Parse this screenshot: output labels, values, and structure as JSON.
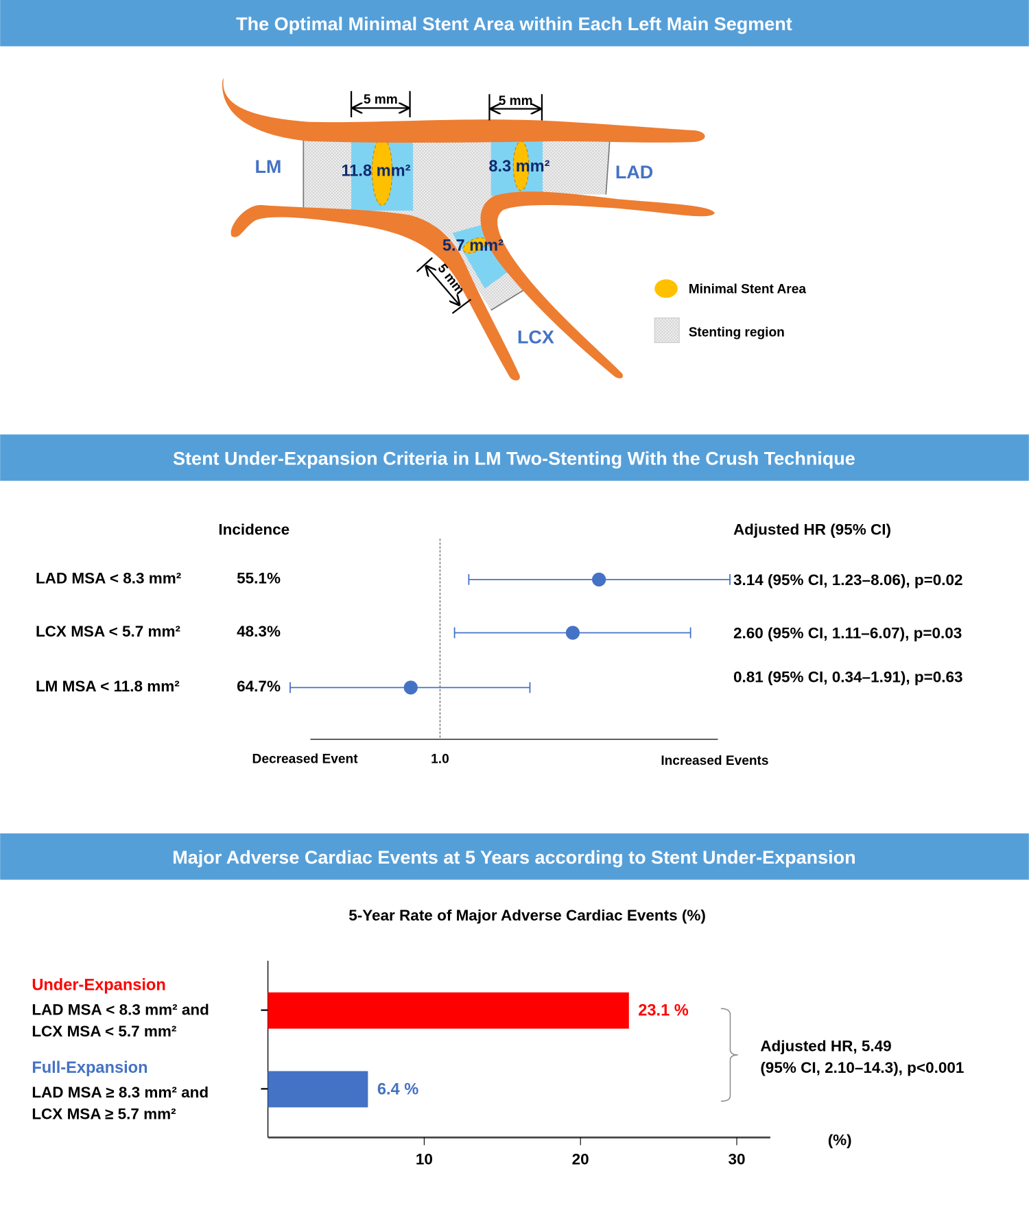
{
  "sections": {
    "diagram_title": "The Optimal Minimal Stent Area within Each Left Main Segment",
    "forest_title": "Stent Under-Expansion Criteria in LM Two-Stenting With the Crush Technique",
    "bar_title": "Major Adverse Cardiac Events at 5 Years according to Stent Under-Expansion"
  },
  "diagram": {
    "segments": {
      "lm": "LM",
      "lad": "LAD",
      "lcx": "LCX"
    },
    "areas": {
      "lm": "11.8 mm²",
      "lad": "8.3 mm²",
      "lcx": "5.7 mm²"
    },
    "dimension": "5 mm",
    "legend": {
      "msa": "Minimal Stent Area",
      "stenting": "Stenting region"
    },
    "colors": {
      "vessel": "#ed7d31",
      "msa": "#ffc000",
      "band": "#7fd3f2",
      "label": "#4472c4"
    }
  },
  "chart_data": [
    {
      "type": "forest",
      "col_incidence": "Incidence",
      "col_hr": "Adjusted HR (95% CI)",
      "reference": 1.0,
      "reference_label": "1.0",
      "left_label": "Decreased Event",
      "right_label": "Increased Events",
      "rows": [
        {
          "label": "LAD MSA < 8.3 mm²",
          "incidence": "55.1%",
          "hr": 3.14,
          "lo": 1.23,
          "hi": 8.06,
          "text": "3.14 (95% CI, 1.23–8.06), p=0.02"
        },
        {
          "label": "LCX MSA < 5.7 mm²",
          "incidence": "48.3%",
          "hr": 2.6,
          "lo": 1.11,
          "hi": 6.07,
          "text": "2.60 (95% CI, 1.11–6.07), p=0.03"
        },
        {
          "label": "LM MSA < 11.8 mm²",
          "incidence": "64.7%",
          "hr": 0.81,
          "lo": 0.34,
          "hi": 1.91,
          "text": "0.81 (95% CI, 0.34–1.91), p=0.63"
        }
      ]
    },
    {
      "type": "bar",
      "title": "5-Year Rate of Major Adverse Cardiac Events (%)",
      "xlabel": "(%)",
      "xticks": [
        10,
        20,
        30
      ],
      "xlim": [
        0,
        32
      ],
      "bars": [
        {
          "group": "Under-Expansion",
          "line1": "LAD MSA < 8.3 mm² and",
          "line2": "LCX MSA < 5.7 mm²",
          "value": 23.1,
          "value_label": "23.1 %",
          "color": "#ff0000"
        },
        {
          "group": "Full-Expansion",
          "line1": "LAD MSA ≥ 8.3 mm² and",
          "line2": "LCX MSA ≥ 5.7 mm²",
          "value": 6.4,
          "value_label": "6.4 %",
          "color": "#4472c4"
        }
      ],
      "annotation": [
        "Adjusted HR, 5.49",
        "(95% CI, 2.10–14.3), p<0.001"
      ]
    }
  ]
}
